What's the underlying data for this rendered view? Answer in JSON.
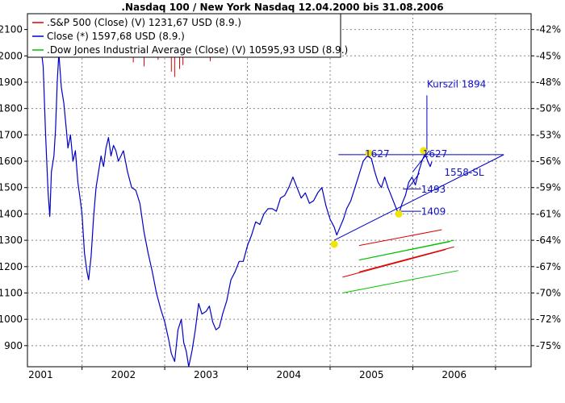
{
  "chart_data": {
    "type": "line",
    "title": ".Nasdaq 100 / New York Nasdaq 12.04.2000 bis 31.08.2006",
    "colors": {
      "nasdaq": "#0000c8",
      "sp500": "#e00000",
      "dow": "#00c000",
      "annotation": "#1010c8",
      "marker": "#f2e600"
    },
    "x_ticks": [
      "2001",
      "2002",
      "2003",
      "2004",
      "2005",
      "2006"
    ],
    "y_left_ticks": [
      "900",
      "1000",
      "1100",
      "1200",
      "1300",
      "1400",
      "1500",
      "1600",
      "1700",
      "1800",
      "1900",
      "2000",
      "2100"
    ],
    "y_right_ticks": [
      "-42%",
      "-45%",
      "-48%",
      "-50%",
      "-53%",
      "-56%",
      "-59%",
      "-61%",
      "-64%",
      "-67%",
      "-70%",
      "-72%",
      "-75%"
    ],
    "ylim": [
      820,
      2160
    ],
    "grid": true,
    "legend": {
      "placement": "top-left",
      "entries": [
        {
          "label": ".S&P 500 (Close) (V) 1231,67 USD (8.9.)",
          "color_key": "sp500"
        },
        {
          "label": "Close (*) 1597,68 USD (8.9.)",
          "color_key": "nasdaq"
        },
        {
          "label": ".Dow Jones Industrial Average (Close) (V) 10595,93 USD (8.9.)",
          "color_key": "dow"
        }
      ]
    },
    "series": [
      {
        "name": "Close (*) 1597,68 USD (8.9.)",
        "color_key": "nasdaq",
        "points": [
          [
            2001.0,
            2040
          ],
          [
            2001.03,
            1960
          ],
          [
            2001.06,
            1700
          ],
          [
            2001.09,
            1480
          ],
          [
            2001.11,
            1390
          ],
          [
            2001.13,
            1560
          ],
          [
            2001.16,
            1620
          ],
          [
            2001.18,
            1720
          ],
          [
            2001.2,
            1900
          ],
          [
            2001.22,
            2010
          ],
          [
            2001.25,
            1880
          ],
          [
            2001.28,
            1820
          ],
          [
            2001.31,
            1720
          ],
          [
            2001.33,
            1650
          ],
          [
            2001.36,
            1700
          ],
          [
            2001.39,
            1600
          ],
          [
            2001.42,
            1640
          ],
          [
            2001.45,
            1520
          ],
          [
            2001.48,
            1450
          ],
          [
            2001.5,
            1400
          ],
          [
            2001.53,
            1250
          ],
          [
            2001.56,
            1180
          ],
          [
            2001.58,
            1150
          ],
          [
            2001.61,
            1240
          ],
          [
            2001.64,
            1390
          ],
          [
            2001.67,
            1500
          ],
          [
            2001.7,
            1560
          ],
          [
            2001.73,
            1620
          ],
          [
            2001.76,
            1580
          ],
          [
            2001.79,
            1650
          ],
          [
            2001.82,
            1690
          ],
          [
            2001.85,
            1620
          ],
          [
            2001.88,
            1660
          ],
          [
            2001.91,
            1640
          ],
          [
            2001.94,
            1600
          ],
          [
            2002.0,
            1640
          ],
          [
            2002.05,
            1560
          ],
          [
            2002.1,
            1500
          ],
          [
            2002.15,
            1490
          ],
          [
            2002.2,
            1440
          ],
          [
            2002.25,
            1330
          ],
          [
            2002.3,
            1250
          ],
          [
            2002.35,
            1180
          ],
          [
            2002.4,
            1100
          ],
          [
            2002.45,
            1040
          ],
          [
            2002.5,
            990
          ],
          [
            2002.55,
            920
          ],
          [
            2002.58,
            870
          ],
          [
            2002.62,
            840
          ],
          [
            2002.66,
            960
          ],
          [
            2002.7,
            1000
          ],
          [
            2002.73,
            910
          ],
          [
            2002.76,
            880
          ],
          [
            2002.79,
            820
          ],
          [
            2002.83,
            880
          ],
          [
            2002.87,
            960
          ],
          [
            2002.91,
            1060
          ],
          [
            2002.95,
            1020
          ],
          [
            2003.0,
            1030
          ],
          [
            2003.04,
            1050
          ],
          [
            2003.08,
            990
          ],
          [
            2003.12,
            960
          ],
          [
            2003.16,
            970
          ],
          [
            2003.2,
            1020
          ],
          [
            2003.25,
            1070
          ],
          [
            2003.3,
            1150
          ],
          [
            2003.35,
            1180
          ],
          [
            2003.4,
            1220
          ],
          [
            2003.45,
            1220
          ],
          [
            2003.5,
            1280
          ],
          [
            2003.55,
            1320
          ],
          [
            2003.6,
            1370
          ],
          [
            2003.65,
            1360
          ],
          [
            2003.7,
            1400
          ],
          [
            2003.75,
            1420
          ],
          [
            2003.8,
            1420
          ],
          [
            2003.85,
            1410
          ],
          [
            2003.9,
            1460
          ],
          [
            2003.95,
            1470
          ],
          [
            2004.0,
            1500
          ],
          [
            2004.05,
            1540
          ],
          [
            2004.1,
            1500
          ],
          [
            2004.15,
            1460
          ],
          [
            2004.2,
            1480
          ],
          [
            2004.25,
            1440
          ],
          [
            2004.3,
            1450
          ],
          [
            2004.35,
            1480
          ],
          [
            2004.4,
            1500
          ],
          [
            2004.45,
            1430
          ],
          [
            2004.5,
            1380
          ],
          [
            2004.55,
            1350
          ],
          [
            2004.58,
            1320
          ],
          [
            2004.62,
            1350
          ],
          [
            2004.66,
            1380
          ],
          [
            2004.7,
            1420
          ],
          [
            2004.75,
            1450
          ],
          [
            2004.8,
            1500
          ],
          [
            2004.85,
            1550
          ],
          [
            2004.9,
            1600
          ],
          [
            2004.95,
            1620
          ],
          [
            2005.0,
            1610
          ],
          [
            2005.04,
            1560
          ],
          [
            2005.08,
            1520
          ],
          [
            2005.12,
            1500
          ],
          [
            2005.16,
            1540
          ],
          [
            2005.2,
            1500
          ],
          [
            2005.25,
            1460
          ],
          [
            2005.3,
            1420
          ],
          [
            2005.33,
            1400
          ],
          [
            2005.37,
            1440
          ],
          [
            2005.41,
            1470
          ],
          [
            2005.45,
            1520
          ],
          [
            2005.49,
            1540
          ],
          [
            2005.53,
            1510
          ],
          [
            2005.57,
            1560
          ],
          [
            2005.61,
            1600
          ],
          [
            2005.65,
            1630
          ],
          [
            2005.68,
            1600
          ],
          [
            2005.71,
            1580
          ],
          [
            2005.73,
            1598
          ]
        ]
      },
      {
        "name": ".S&P 500 (Close) (V) 1231,67 USD (8.9.)",
        "color_key": "sp500",
        "spikes": [
          [
            2002.12,
            1975
          ],
          [
            2002.25,
            1960
          ],
          [
            2002.42,
            1985
          ],
          [
            2002.58,
            1940
          ],
          [
            2002.62,
            1920
          ],
          [
            2002.68,
            1950
          ],
          [
            2002.72,
            1965
          ],
          [
            2003.05,
            1980
          ]
        ]
      }
    ],
    "annotations": {
      "trend_lines": [
        {
          "color_key": "nasdaq",
          "from": [
            2004.55,
            1300
          ],
          "to": [
            2006.6,
            1625
          ]
        },
        {
          "color_key": "nasdaq",
          "from": [
            2004.6,
            1625
          ],
          "to": [
            2006.6,
            1625
          ]
        },
        {
          "color_key": "nasdaq",
          "from": [
            2005.3,
            1410
          ],
          "to": [
            2005.6,
            1410
          ]
        },
        {
          "color_key": "nasdaq",
          "from": [
            2005.38,
            1495
          ],
          "to": [
            2005.6,
            1495
          ]
        },
        {
          "color_key": "nasdaq",
          "from": [
            2005.5,
            1560
          ],
          "to": [
            2005.7,
            1640
          ]
        },
        {
          "color_key": "nasdaq",
          "from": [
            2005.45,
            1500
          ],
          "to": [
            2005.58,
            1555
          ]
        },
        {
          "color_key": "nasdaq",
          "from": [
            2005.67,
            1640
          ],
          "to": [
            2005.67,
            1850
          ]
        },
        {
          "color_key": "sp500",
          "from": [
            2004.85,
            1280
          ],
          "to": [
            2005.85,
            1340
          ]
        },
        {
          "color_key": "sp500",
          "from": [
            2004.85,
            1180
          ],
          "to": [
            2006.0,
            1275
          ]
        },
        {
          "color_key": "sp500",
          "from": [
            2004.65,
            1160
          ],
          "to": [
            2005.9,
            1265
          ]
        },
        {
          "color_key": "dow",
          "from": [
            2004.85,
            1225
          ],
          "to": [
            2006.0,
            1300
          ]
        },
        {
          "color_key": "dow",
          "from": [
            2004.65,
            1100
          ],
          "to": [
            2006.05,
            1185
          ]
        },
        {
          "color_key": "dow",
          "from": [
            2004.85,
            1225
          ],
          "to": [
            2005.95,
            1295
          ]
        }
      ],
      "markers": [
        {
          "x": 2004.55,
          "y": 1285
        },
        {
          "x": 2004.97,
          "y": 1630
        },
        {
          "x": 2005.33,
          "y": 1400
        },
        {
          "x": 2005.63,
          "y": 1640
        }
      ],
      "labels": [
        {
          "text": "Kurszil 1894",
          "x": 2005.67,
          "y": 1893
        },
        {
          "text": "1627",
          "x": 2004.92,
          "y": 1627
        },
        {
          "text": "1627",
          "x": 2005.62,
          "y": 1627
        },
        {
          "text": "1558-SL",
          "x": 2005.88,
          "y": 1558
        },
        {
          "text": "1493",
          "x": 2005.6,
          "y": 1493
        },
        {
          "text": "1409",
          "x": 2005.6,
          "y": 1409
        }
      ]
    }
  }
}
